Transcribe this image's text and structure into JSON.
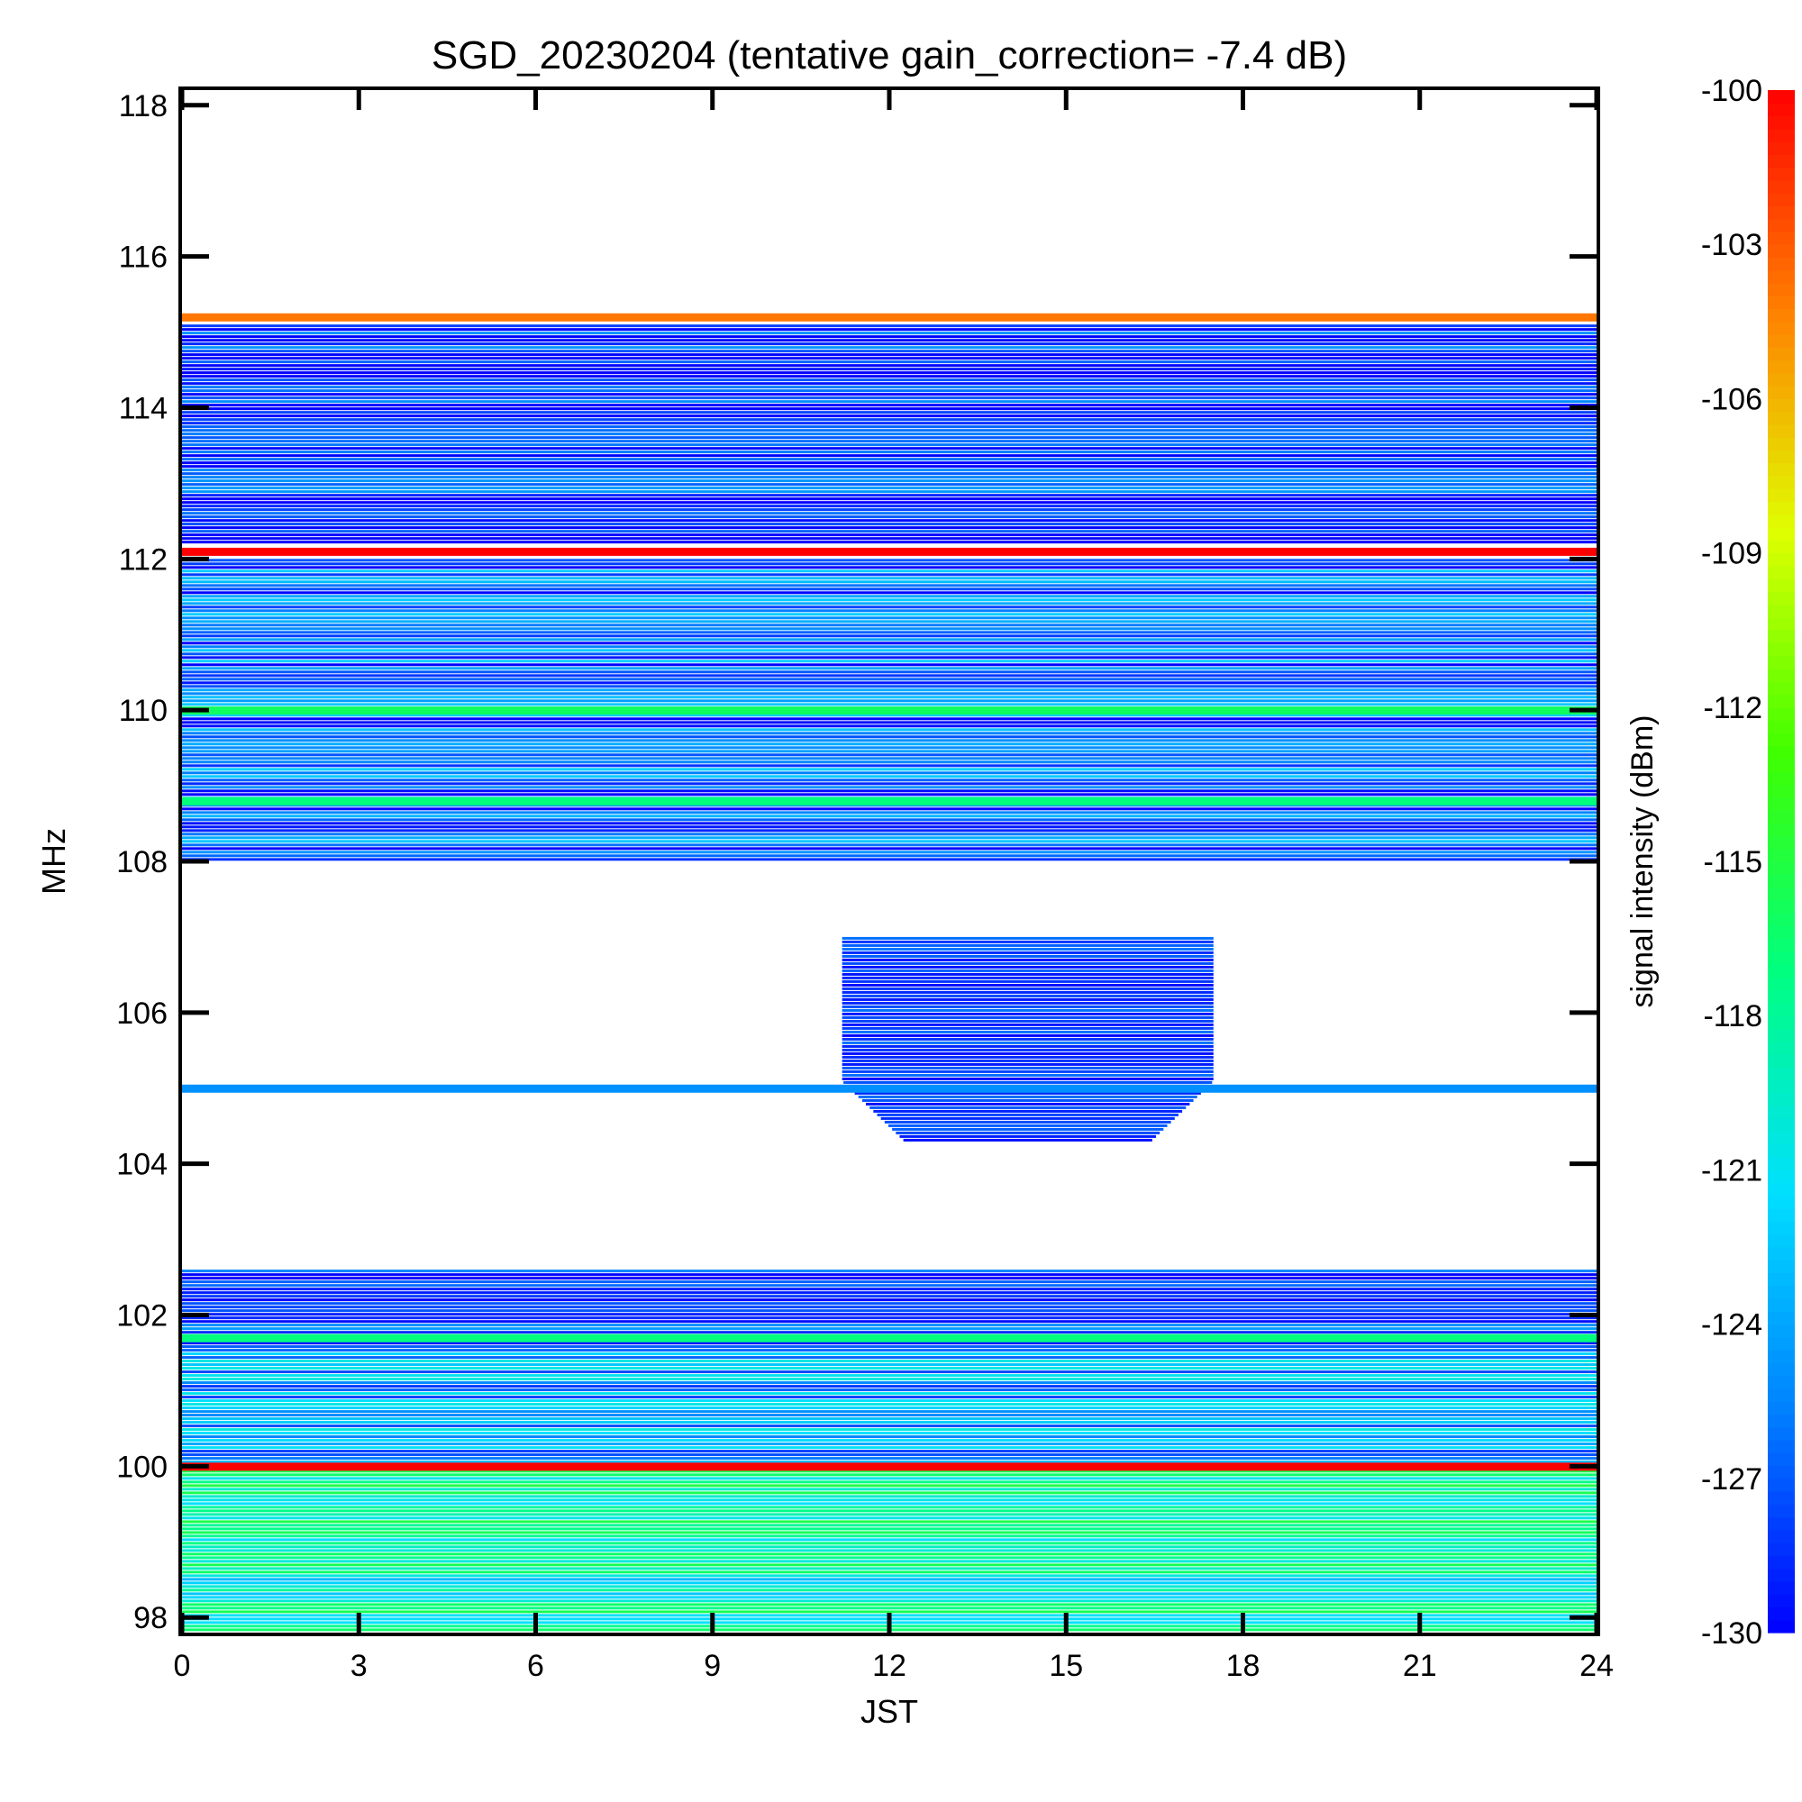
{
  "chart_data": {
    "type": "heatmap",
    "title": "SGD_20230204 (tentative gain_correction= -7.4 dB)",
    "xlabel": "JST",
    "ylabel": "MHz",
    "colorbar_label": "signal intensity (dBm)",
    "xlim": [
      0,
      24
    ],
    "ylim": [
      97.8,
      118.2
    ],
    "x_ticks": [
      "0",
      "3",
      "6",
      "9",
      "12",
      "15",
      "18",
      "21",
      "24"
    ],
    "y_ticks": [
      "98",
      "100",
      "102",
      "104",
      "106",
      "108",
      "110",
      "112",
      "114",
      "116",
      "118"
    ],
    "colorbar_range": [
      -130,
      -100
    ],
    "colorbar_ticks": [
      "-100",
      "-103",
      "-106",
      "-109",
      "-112",
      "-115",
      "-118",
      "-121",
      "-124",
      "-127",
      "-130"
    ],
    "colormap": [
      "#0000ff",
      "#0080ff",
      "#00e0ff",
      "#00ff80",
      "#40ff00",
      "#e0ff00",
      "#ff8000",
      "#ff0000"
    ],
    "background_color": "#ffffff",
    "strong_carriers": [
      {
        "freq_mhz": 115.2,
        "dbm": -104
      },
      {
        "freq_mhz": 112.1,
        "dbm": -100
      },
      {
        "freq_mhz": 110.0,
        "dbm": -116
      },
      {
        "freq_mhz": 108.8,
        "dbm": -117
      },
      {
        "freq_mhz": 105.0,
        "dbm": -125
      },
      {
        "freq_mhz": 101.7,
        "dbm": -117
      },
      {
        "freq_mhz": 100.0,
        "dbm": -100
      }
    ],
    "bands": [
      {
        "f_from": 97.8,
        "f_to": 100.0,
        "dbm": -120
      },
      {
        "f_from": 100.0,
        "f_to": 101.6,
        "dbm": -125
      },
      {
        "f_from": 101.6,
        "f_to": 102.6,
        "dbm": -129
      },
      {
        "f_from": 108.0,
        "f_to": 112.0,
        "dbm": -127
      },
      {
        "f_from": 112.2,
        "f_to": 115.1,
        "dbm": -129
      }
    ],
    "daytime_enhancement": {
      "t_from": 11.2,
      "t_to": 17.5,
      "f_from": 104.3,
      "f_to": 107.0,
      "dbm": -128
    }
  }
}
